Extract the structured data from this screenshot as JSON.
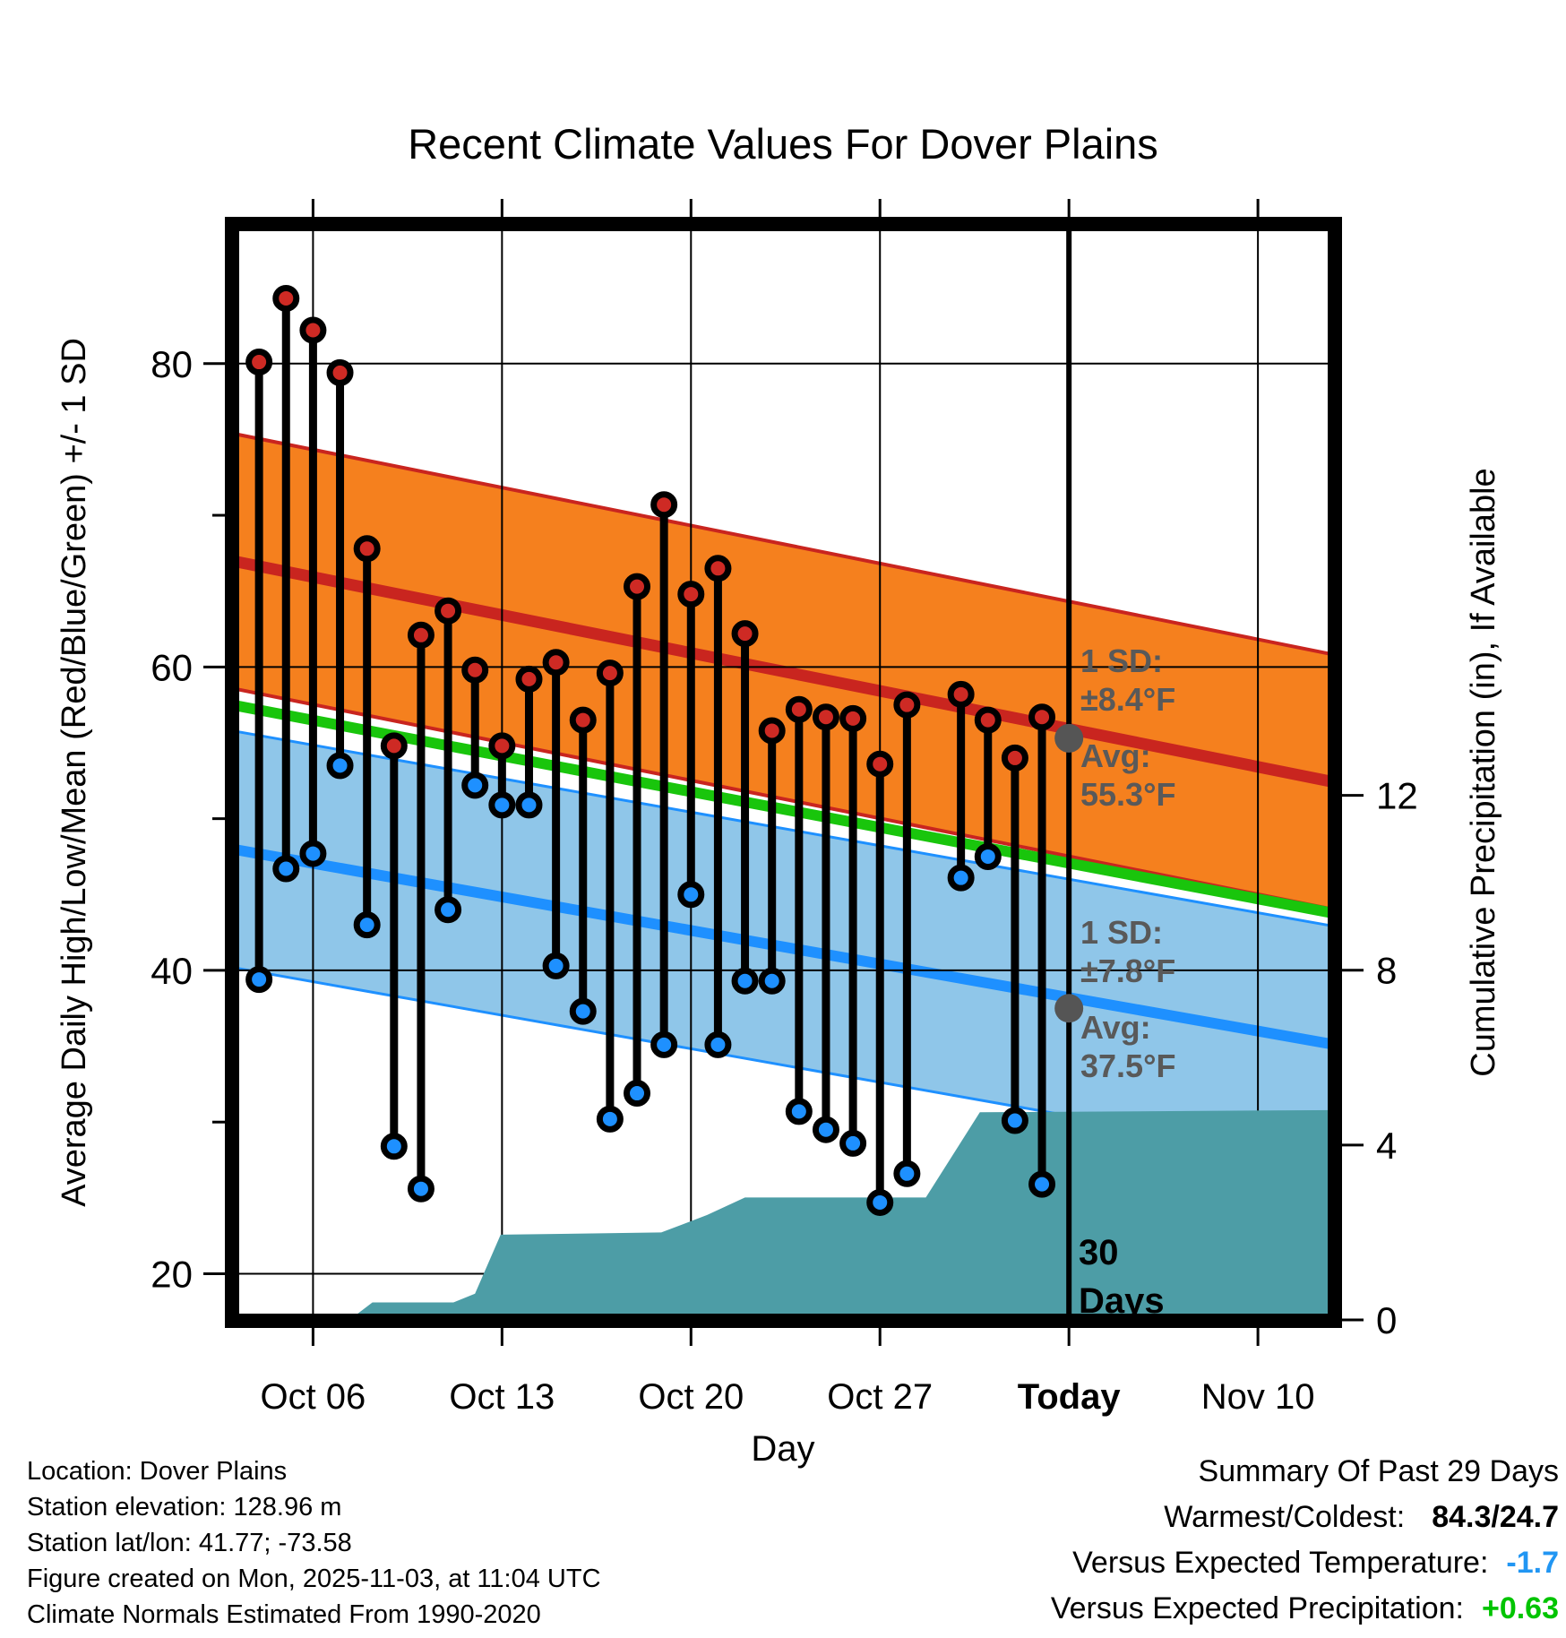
{
  "title": "Recent Climate Values For Dover Plains",
  "axes": {
    "left_title": "Average Daily High/Low/Mean (Red/Blue/Green) +/- 1 SD",
    "right_title": "Cumulative Precipitation (in), If Available",
    "x_title": "Day"
  },
  "annotations": {
    "high_sd_label": "1 SD:",
    "high_sd_value": "±8.4°F",
    "high_avg_label": "Avg:",
    "high_avg_value": "55.3°F",
    "low_sd_label": "1 SD:",
    "low_sd_value": "±7.8°F",
    "low_avg_label": "Avg:",
    "low_avg_value": "37.5°F",
    "days_marker_line1": "30",
    "days_marker_line2": "Days"
  },
  "footer_left": {
    "lines": [
      "Location: Dover Plains",
      "Station elevation: 128.96 m",
      "Station lat/lon: 41.77; -73.58",
      "Figure created on Mon, 2025-11-03, at 11:04 UTC",
      "Climate Normals Estimated From 1990-2020"
    ]
  },
  "summary": {
    "title": "Summary Of Past 29 Days",
    "rows": [
      {
        "label": "Warmest/Coldest:",
        "value": "84.3/24.7",
        "value_color": "#000000"
      },
      {
        "label": "Versus Expected Temperature:",
        "value": "-1.7",
        "value_color": "#2196F3"
      },
      {
        "label": "Versus Expected Precipitation:",
        "value": "+0.63",
        "value_color": "#00C400"
      }
    ]
  },
  "colors": {
    "high_band_fill": "#F5801E",
    "high_line": "#C9251F",
    "high_dot": "#CE2A24",
    "low_band_fill": "#8FC6E9",
    "low_line": "#1E90FF",
    "low_dot": "#1E90FF",
    "mean_line": "#19C50C",
    "precip_fill": "#4D9DA6",
    "stem": "#000000",
    "grid": "#000000",
    "annotation_gray": "#595959",
    "avg_dot_gray": "#555555",
    "value_blue": "#2196F3",
    "value_green": "#00C400"
  },
  "chart_data": {
    "type": "combo",
    "subtype": "daily high/low stems + climate normal bands + cumulative precipitation area",
    "x_unit": "days since Oct 03",
    "x_domain": [
      0,
      40.85
    ],
    "temp_axis": {
      "side": "left",
      "ylim_bottom_top": [
        16.9,
        89.2
      ],
      "major_ticks": [
        20,
        40,
        60,
        80
      ],
      "minor_ticks": [
        30,
        50,
        70
      ]
    },
    "precip_axis": {
      "side": "right",
      "ylim_bottom_top": [
        0,
        25.07
      ],
      "major_ticks": [
        0,
        4,
        8,
        12
      ]
    },
    "date_ticks": [
      {
        "label": "Oct 06",
        "day": 3,
        "bold": false
      },
      {
        "label": "Oct 13",
        "day": 10,
        "bold": false
      },
      {
        "label": "Oct 20",
        "day": 17,
        "bold": false
      },
      {
        "label": "Oct 27",
        "day": 24,
        "bold": false
      },
      {
        "label": "Today",
        "day": 31,
        "bold": true
      },
      {
        "label": "Nov 10",
        "day": 38,
        "bold": false
      }
    ],
    "today_day": 31,
    "daily": [
      {
        "date": "Oct 04",
        "day": 1,
        "high": 80.1,
        "low": 39.4
      },
      {
        "date": "Oct 05",
        "day": 2,
        "high": 84.3,
        "low": 46.7
      },
      {
        "date": "Oct 06",
        "day": 3,
        "high": 82.2,
        "low": 47.7
      },
      {
        "date": "Oct 07",
        "day": 4,
        "high": 79.4,
        "low": 53.5
      },
      {
        "date": "Oct 08",
        "day": 5,
        "high": 67.8,
        "low": 43.0
      },
      {
        "date": "Oct 09",
        "day": 6,
        "high": 54.8,
        "low": 28.4
      },
      {
        "date": "Oct 10",
        "day": 7,
        "high": 62.1,
        "low": 25.6
      },
      {
        "date": "Oct 11",
        "day": 8,
        "high": 63.7,
        "low": 44.0
      },
      {
        "date": "Oct 12",
        "day": 9,
        "high": 59.8,
        "low": 52.2
      },
      {
        "date": "Oct 13",
        "day": 10,
        "high": 54.8,
        "low": 50.9
      },
      {
        "date": "Oct 14",
        "day": 11,
        "high": 59.2,
        "low": 50.9
      },
      {
        "date": "Oct 15",
        "day": 12,
        "high": 60.3,
        "low": 40.3
      },
      {
        "date": "Oct 16",
        "day": 13,
        "high": 56.5,
        "low": 37.3
      },
      {
        "date": "Oct 17",
        "day": 14,
        "high": 59.6,
        "low": 30.2
      },
      {
        "date": "Oct 18",
        "day": 15,
        "high": 65.3,
        "low": 31.9
      },
      {
        "date": "Oct 19",
        "day": 16,
        "high": 70.7,
        "low": 35.1
      },
      {
        "date": "Oct 20",
        "day": 17,
        "high": 64.8,
        "low": 45.0
      },
      {
        "date": "Oct 21",
        "day": 18,
        "high": 66.5,
        "low": 35.1
      },
      {
        "date": "Oct 22",
        "day": 19,
        "high": 62.2,
        "low": 39.3
      },
      {
        "date": "Oct 23",
        "day": 20,
        "high": 55.8,
        "low": 39.3
      },
      {
        "date": "Oct 24",
        "day": 21,
        "high": 57.2,
        "low": 30.7
      },
      {
        "date": "Oct 25",
        "day": 22,
        "high": 56.7,
        "low": 29.5
      },
      {
        "date": "Oct 26",
        "day": 23,
        "high": 56.6,
        "low": 28.6
      },
      {
        "date": "Oct 27",
        "day": 24,
        "high": 53.6,
        "low": 24.7
      },
      {
        "date": "Oct 28",
        "day": 25,
        "high": 57.5,
        "low": 26.6
      },
      {
        "date": "Oct 30",
        "day": 27,
        "high": 58.2,
        "low": 46.1
      },
      {
        "date": "Oct 31",
        "day": 28,
        "high": 56.5,
        "low": 47.5
      },
      {
        "date": "Nov 01",
        "day": 29,
        "high": 54.0,
        "low": 30.1
      },
      {
        "date": "Nov 02",
        "day": 30,
        "high": 56.7,
        "low": 25.9
      }
    ],
    "missing_dates": [
      "Oct 29"
    ],
    "normals": {
      "high_avg_start": 67.0,
      "high_avg_end": 52.4,
      "high_sd": 8.4,
      "low_avg_start": 48.0,
      "low_avg_end": 35.1,
      "low_sd": 7.8,
      "mean_start": 57.5,
      "mean_end": 43.75,
      "today_high_avg": 55.3,
      "today_low_avg": 37.5
    },
    "precip_cumulative_day_in": [
      [
        0,
        0
      ],
      [
        4.35,
        0
      ],
      [
        5.2,
        0.4
      ],
      [
        8.2,
        0.4
      ],
      [
        9.0,
        0.6
      ],
      [
        9.95,
        1.95
      ],
      [
        15.9,
        2.0
      ],
      [
        17.6,
        2.4
      ],
      [
        19.0,
        2.8
      ],
      [
        25.7,
        2.8
      ],
      [
        27.7,
        4.75
      ],
      [
        40.85,
        4.8
      ]
    ],
    "summary_stats": {
      "warmest": 84.3,
      "coldest": 24.7,
      "versus_expected_temperature": -1.7,
      "versus_expected_precipitation": 0.63
    }
  }
}
